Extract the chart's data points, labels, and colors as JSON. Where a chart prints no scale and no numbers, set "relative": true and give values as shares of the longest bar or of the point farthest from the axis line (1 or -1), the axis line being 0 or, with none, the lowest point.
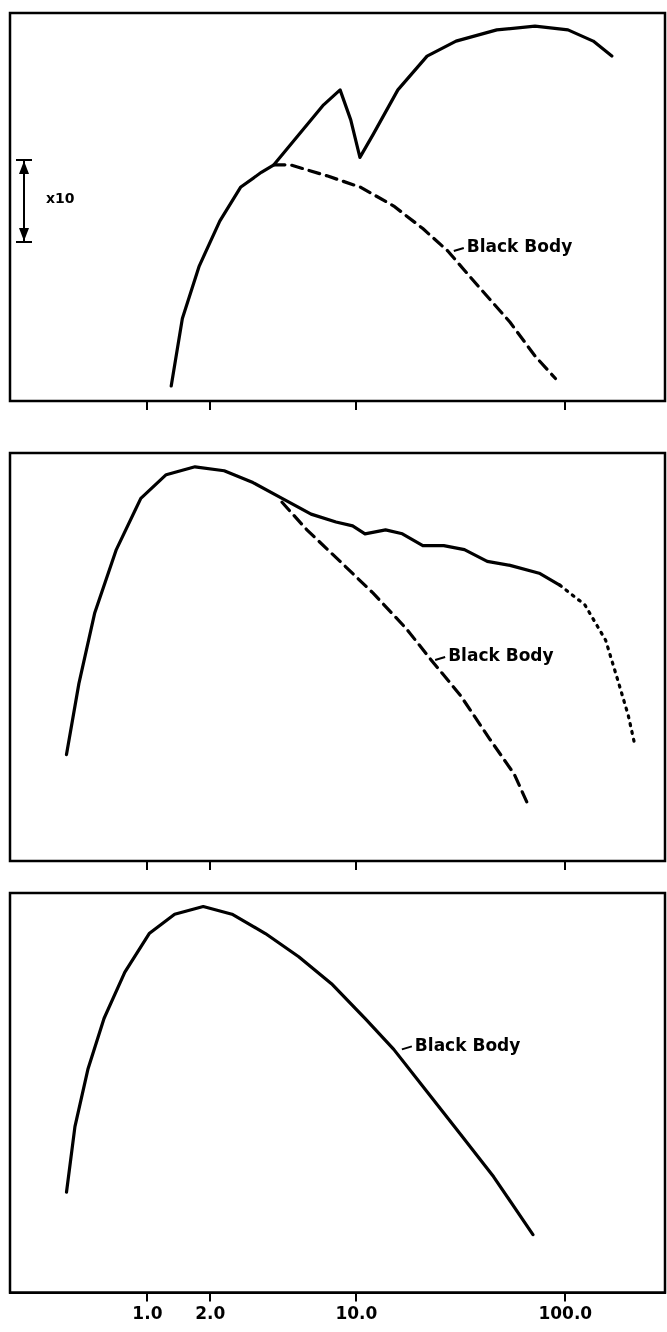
{
  "chart_data": [
    {
      "type": "line",
      "relative": true,
      "log": "x",
      "xlim": [
        0.22,
        300
      ],
      "xticks": [
        {
          "value": 1,
          "label": null
        },
        {
          "value": 2,
          "label": null
        },
        {
          "value": 10,
          "label": null
        },
        {
          "value": 100,
          "label": null
        }
      ],
      "tick_labels": false,
      "marker": "none",
      "series": [
        {
          "color": "#000000",
          "line_style": "solid",
          "x": [
            1.3,
            1.47,
            1.77,
            2.22,
            2.79,
            3.51,
            4.03,
            5.3,
            6.97,
            8.36,
            9.4,
            10.4,
            12.0,
            15.8,
            21.8,
            30,
            47,
            71.6,
            103,
            136,
            167
          ],
          "values": [
            0.04,
            0.22,
            0.36,
            0.48,
            0.57,
            0.61,
            0.63,
            0.71,
            0.79,
            0.83,
            0.75,
            0.65,
            0.71,
            0.83,
            0.92,
            0.96,
            0.99,
            1.0,
            0.99,
            0.96,
            0.92
          ]
        },
        {
          "color": "#000000",
          "line_style": "dashed",
          "x": [
            4.03,
            4.83,
            7.3,
            10.5,
            15.1,
            20.8,
            27.4,
            37.8,
            54.4,
            71.6,
            89.7
          ],
          "values": [
            0.63,
            0.63,
            0.6,
            0.57,
            0.52,
            0.46,
            0.4,
            0.31,
            0.21,
            0.12,
            0.06
          ]
        }
      ],
      "annotations": [
        "x10",
        {
          "text": "Black Body",
          "x": 28,
          "y": 0.4
        }
      ]
    },
    {
      "type": "line",
      "relative": true,
      "log": "x",
      "xlim": [
        0.22,
        300
      ],
      "xticks": [
        {
          "value": 1,
          "label": null
        },
        {
          "value": 2,
          "label": null
        },
        {
          "value": 10,
          "label": null
        },
        {
          "value": 100,
          "label": null
        }
      ],
      "tick_labels": false,
      "marker": "none",
      "series": [
        {
          "color": "#000000",
          "line_style": "solid",
          "x": [
            0.41,
            0.47,
            0.56,
            0.71,
            0.93,
            1.23,
            1.69,
            2.33,
            3.2,
            4.41,
            6.07,
            7.99,
            9.6,
            11.0,
            13.8,
            16.6,
            20.8,
            26.2,
            32.9,
            42.3,
            54.4,
            75,
            94
          ],
          "values": [
            0.27,
            0.45,
            0.63,
            0.79,
            0.92,
            0.98,
            1.0,
            0.99,
            0.96,
            0.92,
            0.88,
            0.86,
            0.85,
            0.83,
            0.84,
            0.83,
            0.8,
            0.8,
            0.79,
            0.76,
            0.75,
            0.73,
            0.7
          ]
        },
        {
          "color": "#000000",
          "line_style": "dotted",
          "x": [
            94,
            124,
            156,
            178,
            200,
            214
          ],
          "values": [
            0.7,
            0.65,
            0.56,
            0.46,
            0.37,
            0.3
          ]
        },
        {
          "color": "#000000",
          "line_style": "dashed",
          "x": [
            4.41,
            5.8,
            8.36,
            12.0,
            17.3,
            22.8,
            31.5,
            43.4,
            57,
            66.7
          ],
          "values": [
            0.91,
            0.84,
            0.76,
            0.68,
            0.59,
            0.51,
            0.42,
            0.31,
            0.22,
            0.14
          ]
        }
      ],
      "annotations": [
        {
          "text": "Black Body",
          "x": 22.8,
          "y": 0.51
        }
      ]
    },
    {
      "type": "line",
      "relative": true,
      "log": "x",
      "xlim": [
        0.22,
        300
      ],
      "xticks": [
        {
          "value": 1,
          "label": "1.0"
        },
        {
          "value": 2,
          "label": "2.0"
        },
        {
          "value": 10,
          "label": "10.0"
        },
        {
          "value": 100,
          "label": "100.0"
        }
      ],
      "tick_labels": "x",
      "marker": "none",
      "series": [
        {
          "color": "#000000",
          "line_style": "solid",
          "x": [
            0.41,
            0.45,
            0.52,
            0.62,
            0.78,
            1.02,
            1.35,
            1.85,
            2.54,
            3.67,
            5.3,
            7.6,
            11.0,
            15.1,
            21.8,
            31.5,
            45.4,
            70
          ],
          "values": [
            0.26,
            0.43,
            0.58,
            0.71,
            0.83,
            0.93,
            0.98,
            1.0,
            0.98,
            0.93,
            0.87,
            0.8,
            0.71,
            0.63,
            0.52,
            0.41,
            0.3,
            0.15
          ]
        }
      ],
      "annotations": [
        {
          "text": "Black Body",
          "x": 15.8,
          "y": 0.63
        }
      ]
    }
  ]
}
